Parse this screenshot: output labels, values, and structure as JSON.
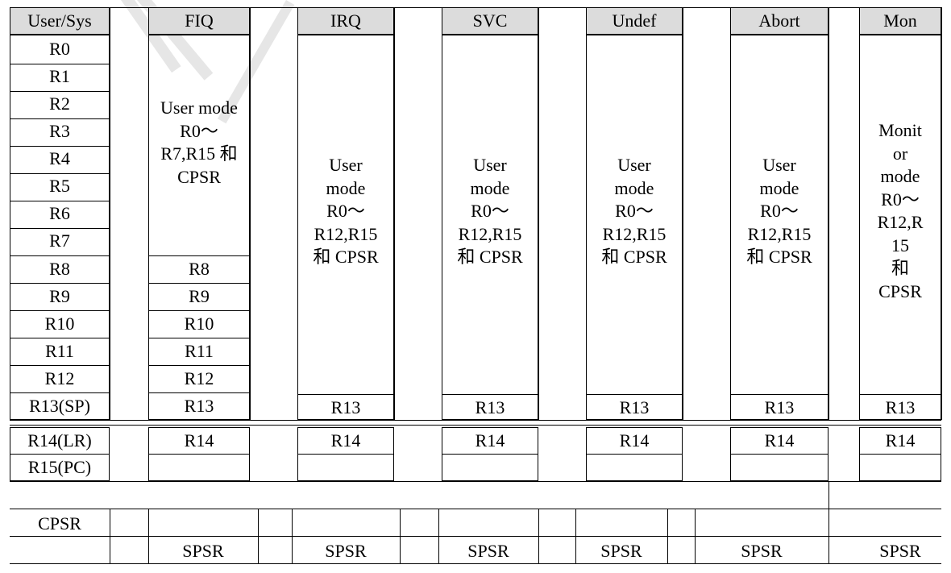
{
  "headers": {
    "user": "User/Sys",
    "fiq": "FIQ",
    "irq": "IRQ",
    "svc": "SVC",
    "undef": "Undef",
    "abort": "Abort",
    "mon": "Mon"
  },
  "user_regs": [
    "R0",
    "R1",
    "R2",
    "R3",
    "R4",
    "R5",
    "R6",
    "R7",
    "R8",
    "R9",
    "R10",
    "R11",
    "R12",
    "R13(SP)"
  ],
  "user_r14": "R14(LR)",
  "user_r15": "R15(PC)",
  "user_cpsr": "CPSR",
  "fiq_shared": "User mode\nR0～\nR7,R15 和\nCPSR",
  "fiq_regs": [
    "R8",
    "R9",
    "R10",
    "R11",
    "R12",
    "R13"
  ],
  "mode_shared": "User\nmode\nR0～\nR12,R15\n和 CPSR",
  "mon_shared": "Monit\nor\nmode\nR0～\nR12,R\n15\n和\nCPSR",
  "r13": "R13",
  "r14": "R14",
  "spsr": "SPSR",
  "watermark_color": "#e6e6e6"
}
